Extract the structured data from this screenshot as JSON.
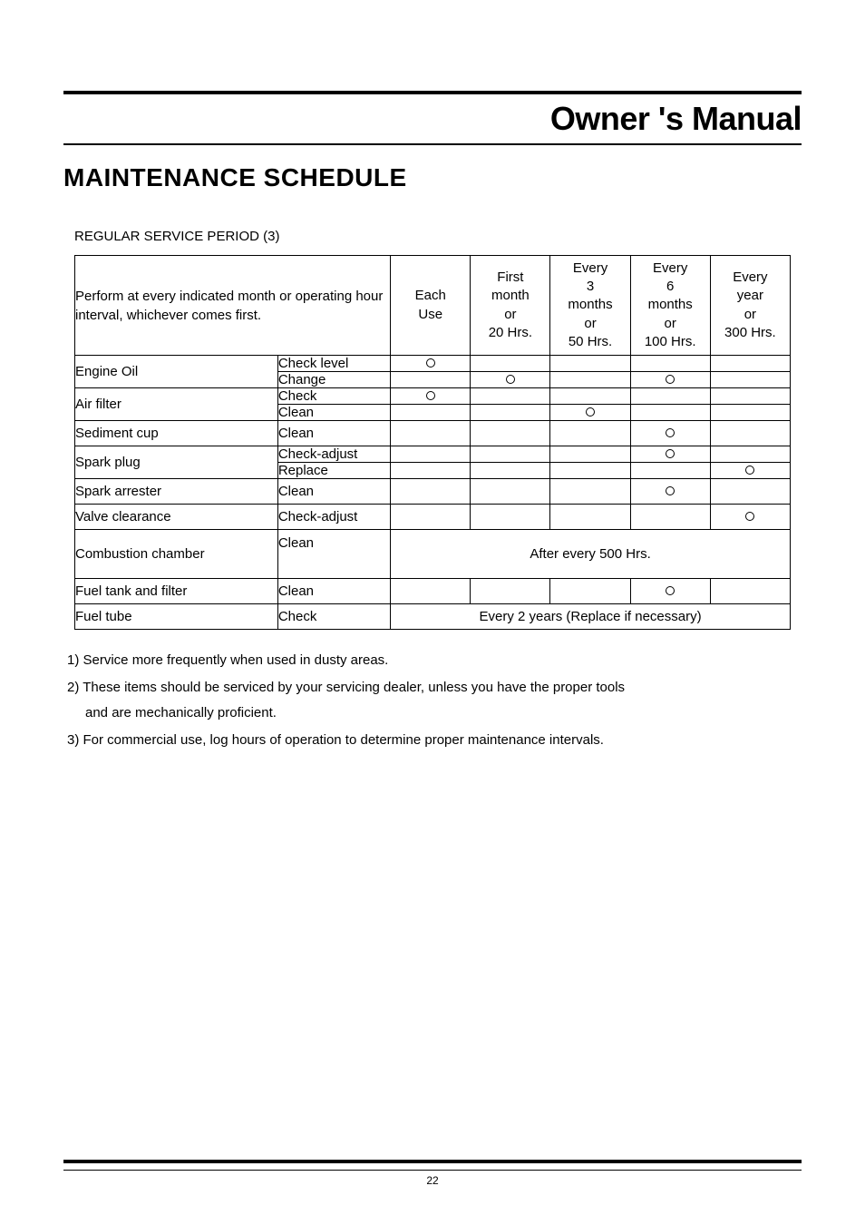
{
  "manualTitle": "Owner 's Manual",
  "sectionHeading": "MAINTENANCE SCHEDULE",
  "regularLabel": "REGULAR SERVICE PERIOD (3)",
  "headerDesc": "Perform at every indicated month or operating hour interval, whichever comes first.",
  "cols": {
    "each": "Each\nUse",
    "first": "First\nmonth\nor\n20 Hrs.",
    "e3": "Every\n3\nmonths\nor\n50 Hrs.",
    "e6": "Every\n6\nmonths\nor\n100 Hrs.",
    "ey": "Every\nyear\nor\n300 Hrs."
  },
  "rows": {
    "engineOil": {
      "label": "Engine Oil",
      "a1": "Check level",
      "a2": "Change"
    },
    "airFilter": {
      "label": "Air filter",
      "a1": "Check",
      "a2": "Clean"
    },
    "sediment": {
      "label": "Sediment cup",
      "a1": "Clean"
    },
    "sparkPlug": {
      "label": "Spark plug",
      "a1": "Check-adjust",
      "a2": "Replace"
    },
    "sparkArrester": {
      "label": "Spark arrester",
      "a1": "Clean"
    },
    "valve": {
      "label": "Valve clearance",
      "a1": "Check-adjust"
    },
    "combustion": {
      "label": "Combustion chamber",
      "a1": "Clean",
      "note": "After every 500 Hrs."
    },
    "fuelTank": {
      "label": "Fuel tank and filter",
      "a1": "Clean"
    },
    "fuelTube": {
      "label": "Fuel tube",
      "a1": "Check",
      "note": "Every 2 years (Replace if necessary)"
    }
  },
  "marks": {
    "engineOil_check_each": true,
    "engineOil_change_first": true,
    "engineOil_change_e6": true,
    "airFilter_check_each": true,
    "airFilter_clean_e3": true,
    "sediment_clean_e6": true,
    "sparkPlug_check_e6": true,
    "sparkPlug_replace_ey": true,
    "sparkArrester_clean_e6": true,
    "valve_check_ey": true,
    "fuelTank_clean_e6": true
  },
  "notes": {
    "n1": "1) Service more frequently when used in dusty areas.",
    "n2a": "2) These items should be serviced by your servicing dealer, unless you have the proper tools",
    "n2b": "and are mechanically proficient.",
    "n3": "3) For commercial use, log hours of operation to determine proper maintenance intervals."
  },
  "pageNum": "22",
  "style": {
    "pageWidth": 954,
    "pageHeight": 1350,
    "bodyFont": "Arial",
    "titleFont": "Arial Black",
    "titleSize": 36,
    "headingSize": 28,
    "bodySize": 15,
    "tableBorderColor": "#000000",
    "tableBorderWidth": 1.5,
    "ruleThick": 4,
    "ruleThin": 2,
    "textColor": "#000000",
    "bgColor": "#ffffff",
    "circleMarkDiameter": 10,
    "circleMarkStroke": 1.5
  }
}
